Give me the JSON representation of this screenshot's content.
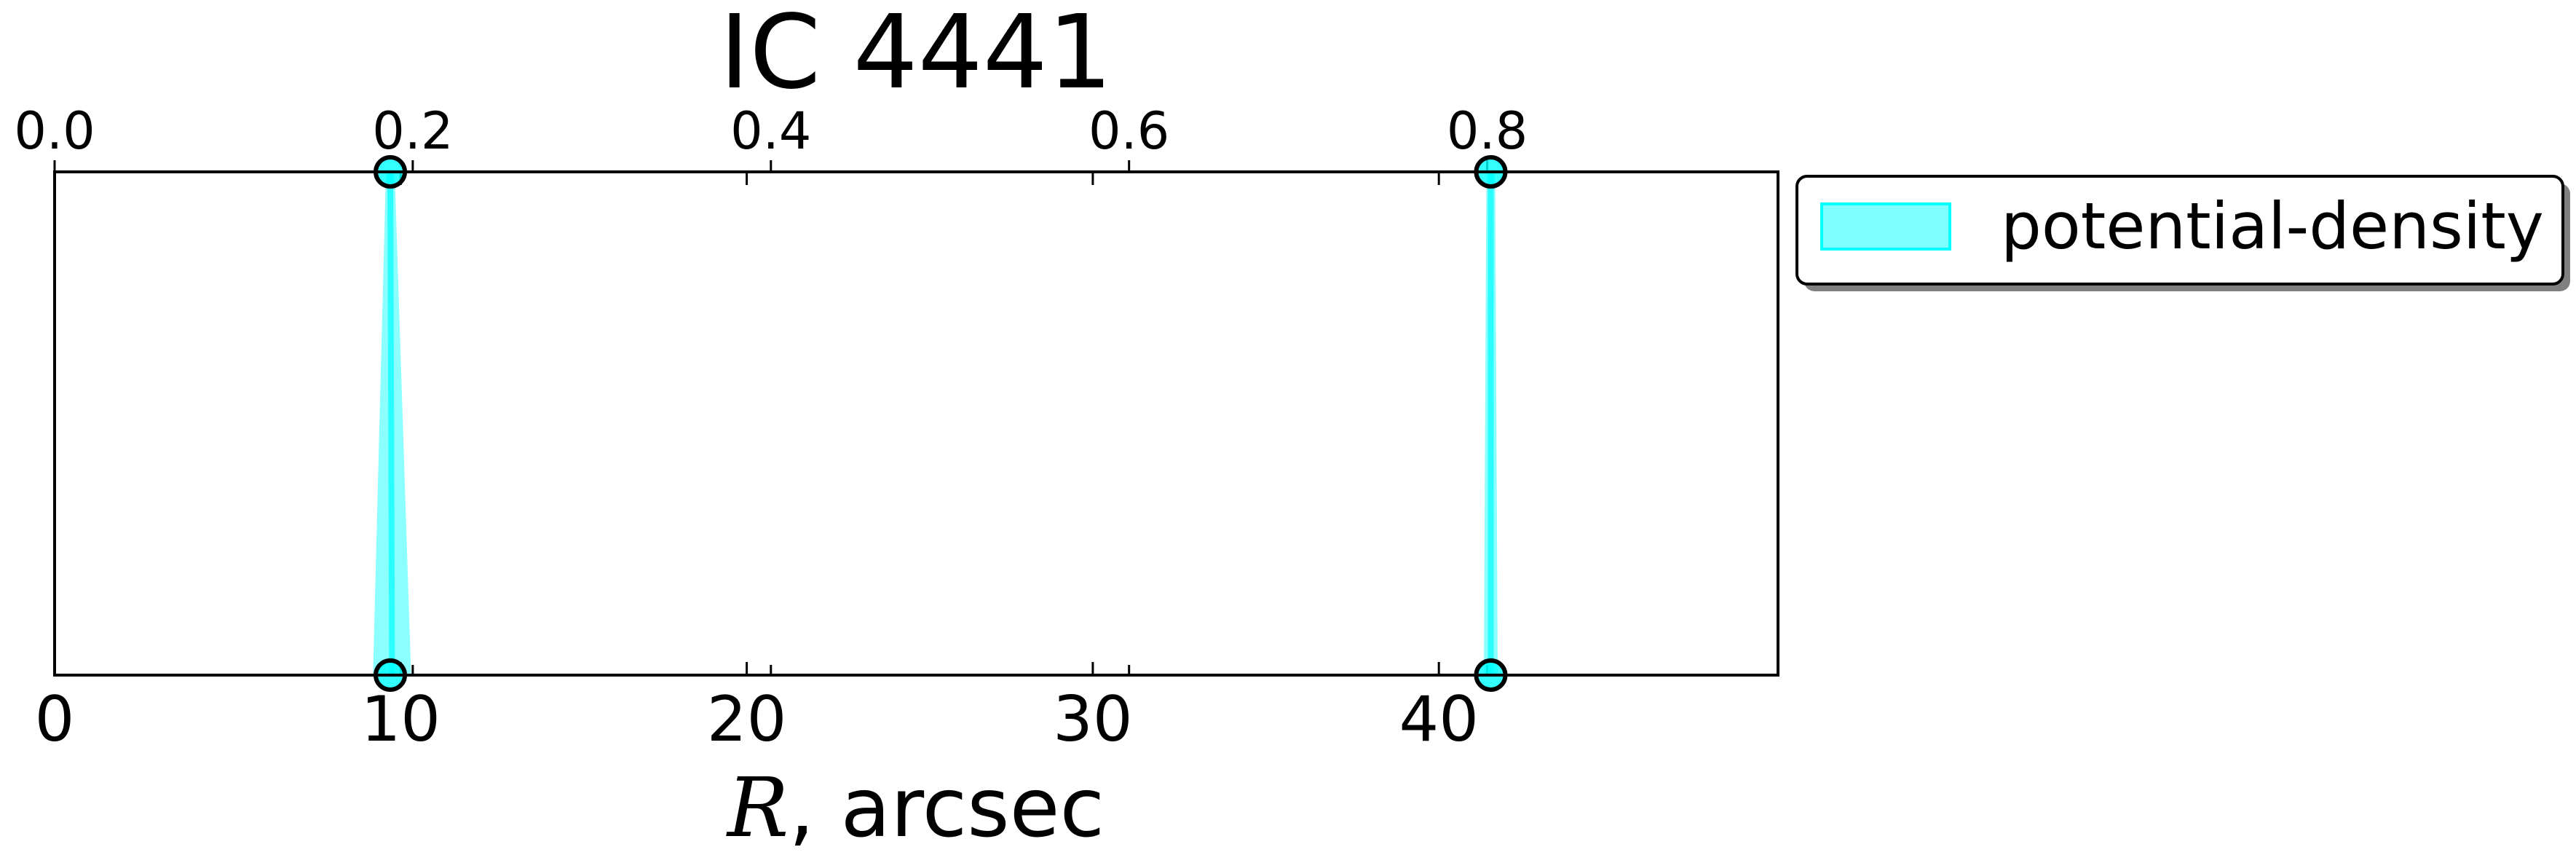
{
  "chart_data": {
    "type": "area",
    "title": "IC 4441",
    "xlabel_math": "R",
    "xlabel_rest": ", arcsec",
    "xlim": [
      0,
      49.8
    ],
    "x_ticks": [
      0,
      10,
      20,
      30,
      40
    ],
    "x_tick_labels": [
      "0",
      "10",
      "20",
      "30",
      "40"
    ],
    "top_xlim": [
      0,
      0.9624
    ],
    "top_ticks": [
      0.0,
      0.2,
      0.4,
      0.6,
      0.8
    ],
    "top_tick_labels": [
      "0.0",
      "0.2",
      "0.4",
      "0.6",
      "0.8"
    ],
    "ylim": [
      0,
      1
    ],
    "grid": false,
    "legend_position": "outside-right-top",
    "series": [
      {
        "name": "potential-density",
        "color": "#00ffff",
        "bands": [
          {
            "top_x": 9.7,
            "bottom_x_range": [
              9.2,
              10.3
            ]
          },
          {
            "top_x": 41.5,
            "bottom_x_range": [
              41.3,
              41.7
            ]
          }
        ],
        "markers": [
          {
            "x": 9.7,
            "y": 1
          },
          {
            "x": 9.7,
            "y": 0
          },
          {
            "x": 41.5,
            "y": 1
          },
          {
            "x": 41.5,
            "y": 0
          }
        ]
      }
    ]
  }
}
